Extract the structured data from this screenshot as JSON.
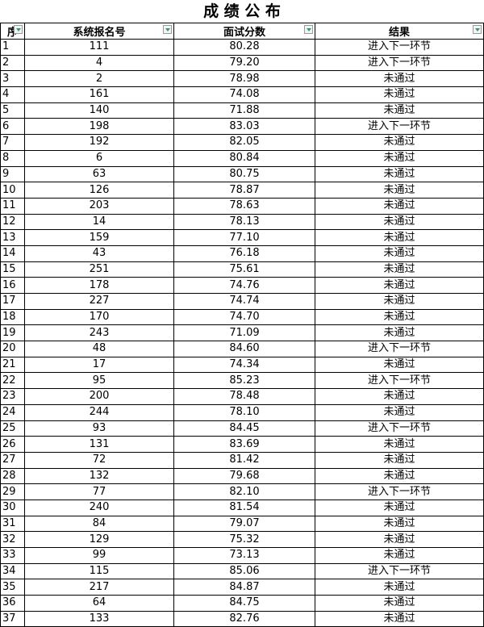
{
  "title": "成 绩 公 布",
  "table": {
    "header": [
      "序",
      "系统报名号",
      "面试分数",
      "结果"
    ],
    "rows": [
      [
        "1",
        "111",
        "80.28",
        "进入下一环节"
      ],
      [
        "2",
        "4",
        "79.20",
        "进入下一环节"
      ],
      [
        "3",
        "2",
        "78.98",
        "未通过"
      ],
      [
        "4",
        "161",
        "74.08",
        "未通过"
      ],
      [
        "5",
        "140",
        "71.88",
        "未通过"
      ],
      [
        "6",
        "198",
        "83.03",
        "进入下一环节"
      ],
      [
        "7",
        "192",
        "82.05",
        "未通过"
      ],
      [
        "8",
        "6",
        "80.84",
        "未通过"
      ],
      [
        "9",
        "63",
        "80.75",
        "未通过"
      ],
      [
        "10",
        "126",
        "78.87",
        "未通过"
      ],
      [
        "11",
        "203",
        "78.63",
        "未通过"
      ],
      [
        "12",
        "14",
        "78.13",
        "未通过"
      ],
      [
        "13",
        "159",
        "77.10",
        "未通过"
      ],
      [
        "14",
        "43",
        "76.18",
        "未通过"
      ],
      [
        "15",
        "251",
        "75.61",
        "未通过"
      ],
      [
        "16",
        "178",
        "74.76",
        "未通过"
      ],
      [
        "17",
        "227",
        "74.74",
        "未通过"
      ],
      [
        "18",
        "170",
        "74.70",
        "未通过"
      ],
      [
        "19",
        "243",
        "71.09",
        "未通过"
      ],
      [
        "20",
        "48",
        "84.60",
        "进入下一环节"
      ],
      [
        "21",
        "17",
        "74.34",
        "未通过"
      ],
      [
        "22",
        "95",
        "85.23",
        "进入下一环节"
      ],
      [
        "23",
        "200",
        "78.48",
        "未通过"
      ],
      [
        "24",
        "244",
        "78.10",
        "未通过"
      ],
      [
        "25",
        "93",
        "84.45",
        "进入下一环节"
      ],
      [
        "26",
        "131",
        "83.69",
        "未通过"
      ],
      [
        "27",
        "72",
        "81.42",
        "未通过"
      ],
      [
        "28",
        "132",
        "79.68",
        "未通过"
      ],
      [
        "29",
        "77",
        "82.10",
        "进入下一环节"
      ],
      [
        "30",
        "240",
        "81.54",
        "未通过"
      ],
      [
        "31",
        "84",
        "79.07",
        "未通过"
      ],
      [
        "32",
        "129",
        "75.32",
        "未通过"
      ],
      [
        "33",
        "99",
        "73.13",
        "未通过"
      ],
      [
        "34",
        "115",
        "85.06",
        "进入下一环节"
      ],
      [
        "35",
        "217",
        "84.87",
        "未通过"
      ],
      [
        "36",
        "64",
        "84.75",
        "未通过"
      ],
      [
        "37",
        "133",
        "82.76",
        "未通过"
      ]
    ]
  }
}
